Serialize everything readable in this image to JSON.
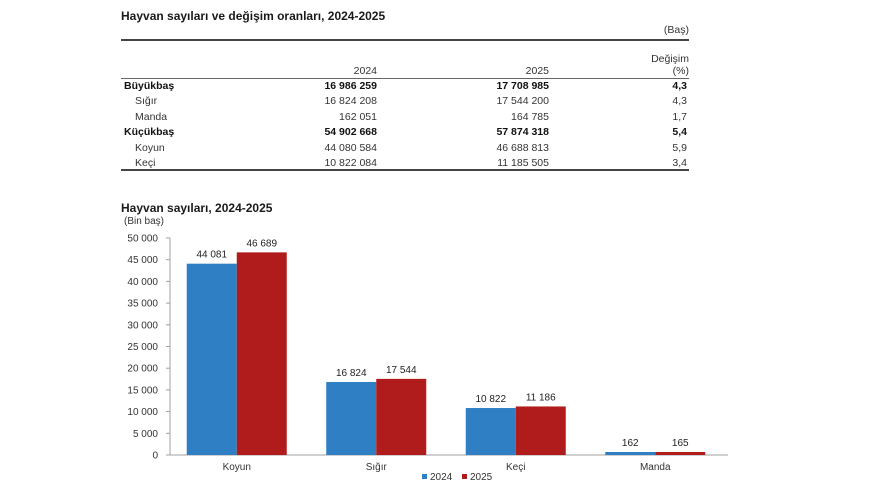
{
  "table": {
    "title": "Hayvan sayıları ve değişim oranları, 2024-2025",
    "unit": "(Baş)",
    "columns": [
      "",
      "2024",
      "2025",
      "Değişim",
      "(%)"
    ],
    "rows": [
      {
        "label": "Büyükbaş",
        "bold": true,
        "v2024": "16 986 259",
        "v2025": "17 708 985",
        "change": "4,3"
      },
      {
        "label": "Sığır",
        "bold": false,
        "v2024": "16 824 208",
        "v2025": "17 544 200",
        "change": "4,3"
      },
      {
        "label": "Manda",
        "bold": false,
        "v2024": "162 051",
        "v2025": "164 785",
        "change": "1,7"
      },
      {
        "label": "Küçükbaş",
        "bold": true,
        "v2024": "54 902 668",
        "v2025": "57 874 318",
        "change": "5,4"
      },
      {
        "label": "Koyun",
        "bold": false,
        "v2024": "44 080 584",
        "v2025": "46 688 813",
        "change": "5,9"
      },
      {
        "label": "Keçi",
        "bold": false,
        "v2024": "10 822 084",
        "v2025": "11 185 505",
        "change": "3,4"
      }
    ]
  },
  "chart_data": {
    "type": "bar",
    "title": "Hayvan sayıları, 2024-2025",
    "ylabel": "(Bin baş)",
    "xlabel": "",
    "categories": [
      "Koyun",
      "Sığır",
      "Keçi",
      "Manda"
    ],
    "series": [
      {
        "name": "2024",
        "color": "#2e7fc4",
        "values": [
          44081,
          16824,
          10822,
          162
        ],
        "labels": [
          "44 081",
          "16 824",
          "10 822",
          "162"
        ]
      },
      {
        "name": "2025",
        "color": "#b01c1c",
        "values": [
          46689,
          17544,
          11186,
          165
        ],
        "labels": [
          "46 689",
          "17 544",
          "11 186",
          "165"
        ]
      }
    ],
    "ylim": [
      0,
      50000
    ],
    "yticks": [
      0,
      5000,
      10000,
      15000,
      20000,
      25000,
      30000,
      35000,
      40000,
      45000,
      50000
    ],
    "ytick_labels": [
      "0",
      "5 000",
      "10 000",
      "15 000",
      "20 000",
      "25 000",
      "30 000",
      "35 000",
      "40 000",
      "45 000",
      "50 000"
    ],
    "grid": false,
    "legend_position": "bottom-center"
  }
}
